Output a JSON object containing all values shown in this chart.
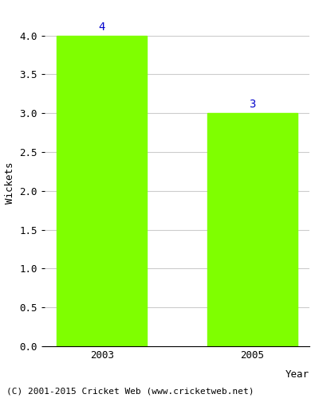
{
  "categories": [
    "2003",
    "2005"
  ],
  "values": [
    4,
    3
  ],
  "bar_color": "#7fff00",
  "bar_width": 0.6,
  "xlabel": "Year",
  "ylabel": "Wickets",
  "ylim": [
    0,
    4.2
  ],
  "yticks": [
    0.0,
    0.5,
    1.0,
    1.5,
    2.0,
    2.5,
    3.0,
    3.5,
    4.0
  ],
  "annotation_color": "#0000cc",
  "annotation_fontsize": 10,
  "axis_label_fontsize": 9,
  "tick_fontsize": 9,
  "footer_text": "(C) 2001-2015 Cricket Web (www.cricketweb.net)",
  "footer_fontsize": 8,
  "background_color": "#ffffff",
  "grid_color": "#cccccc"
}
